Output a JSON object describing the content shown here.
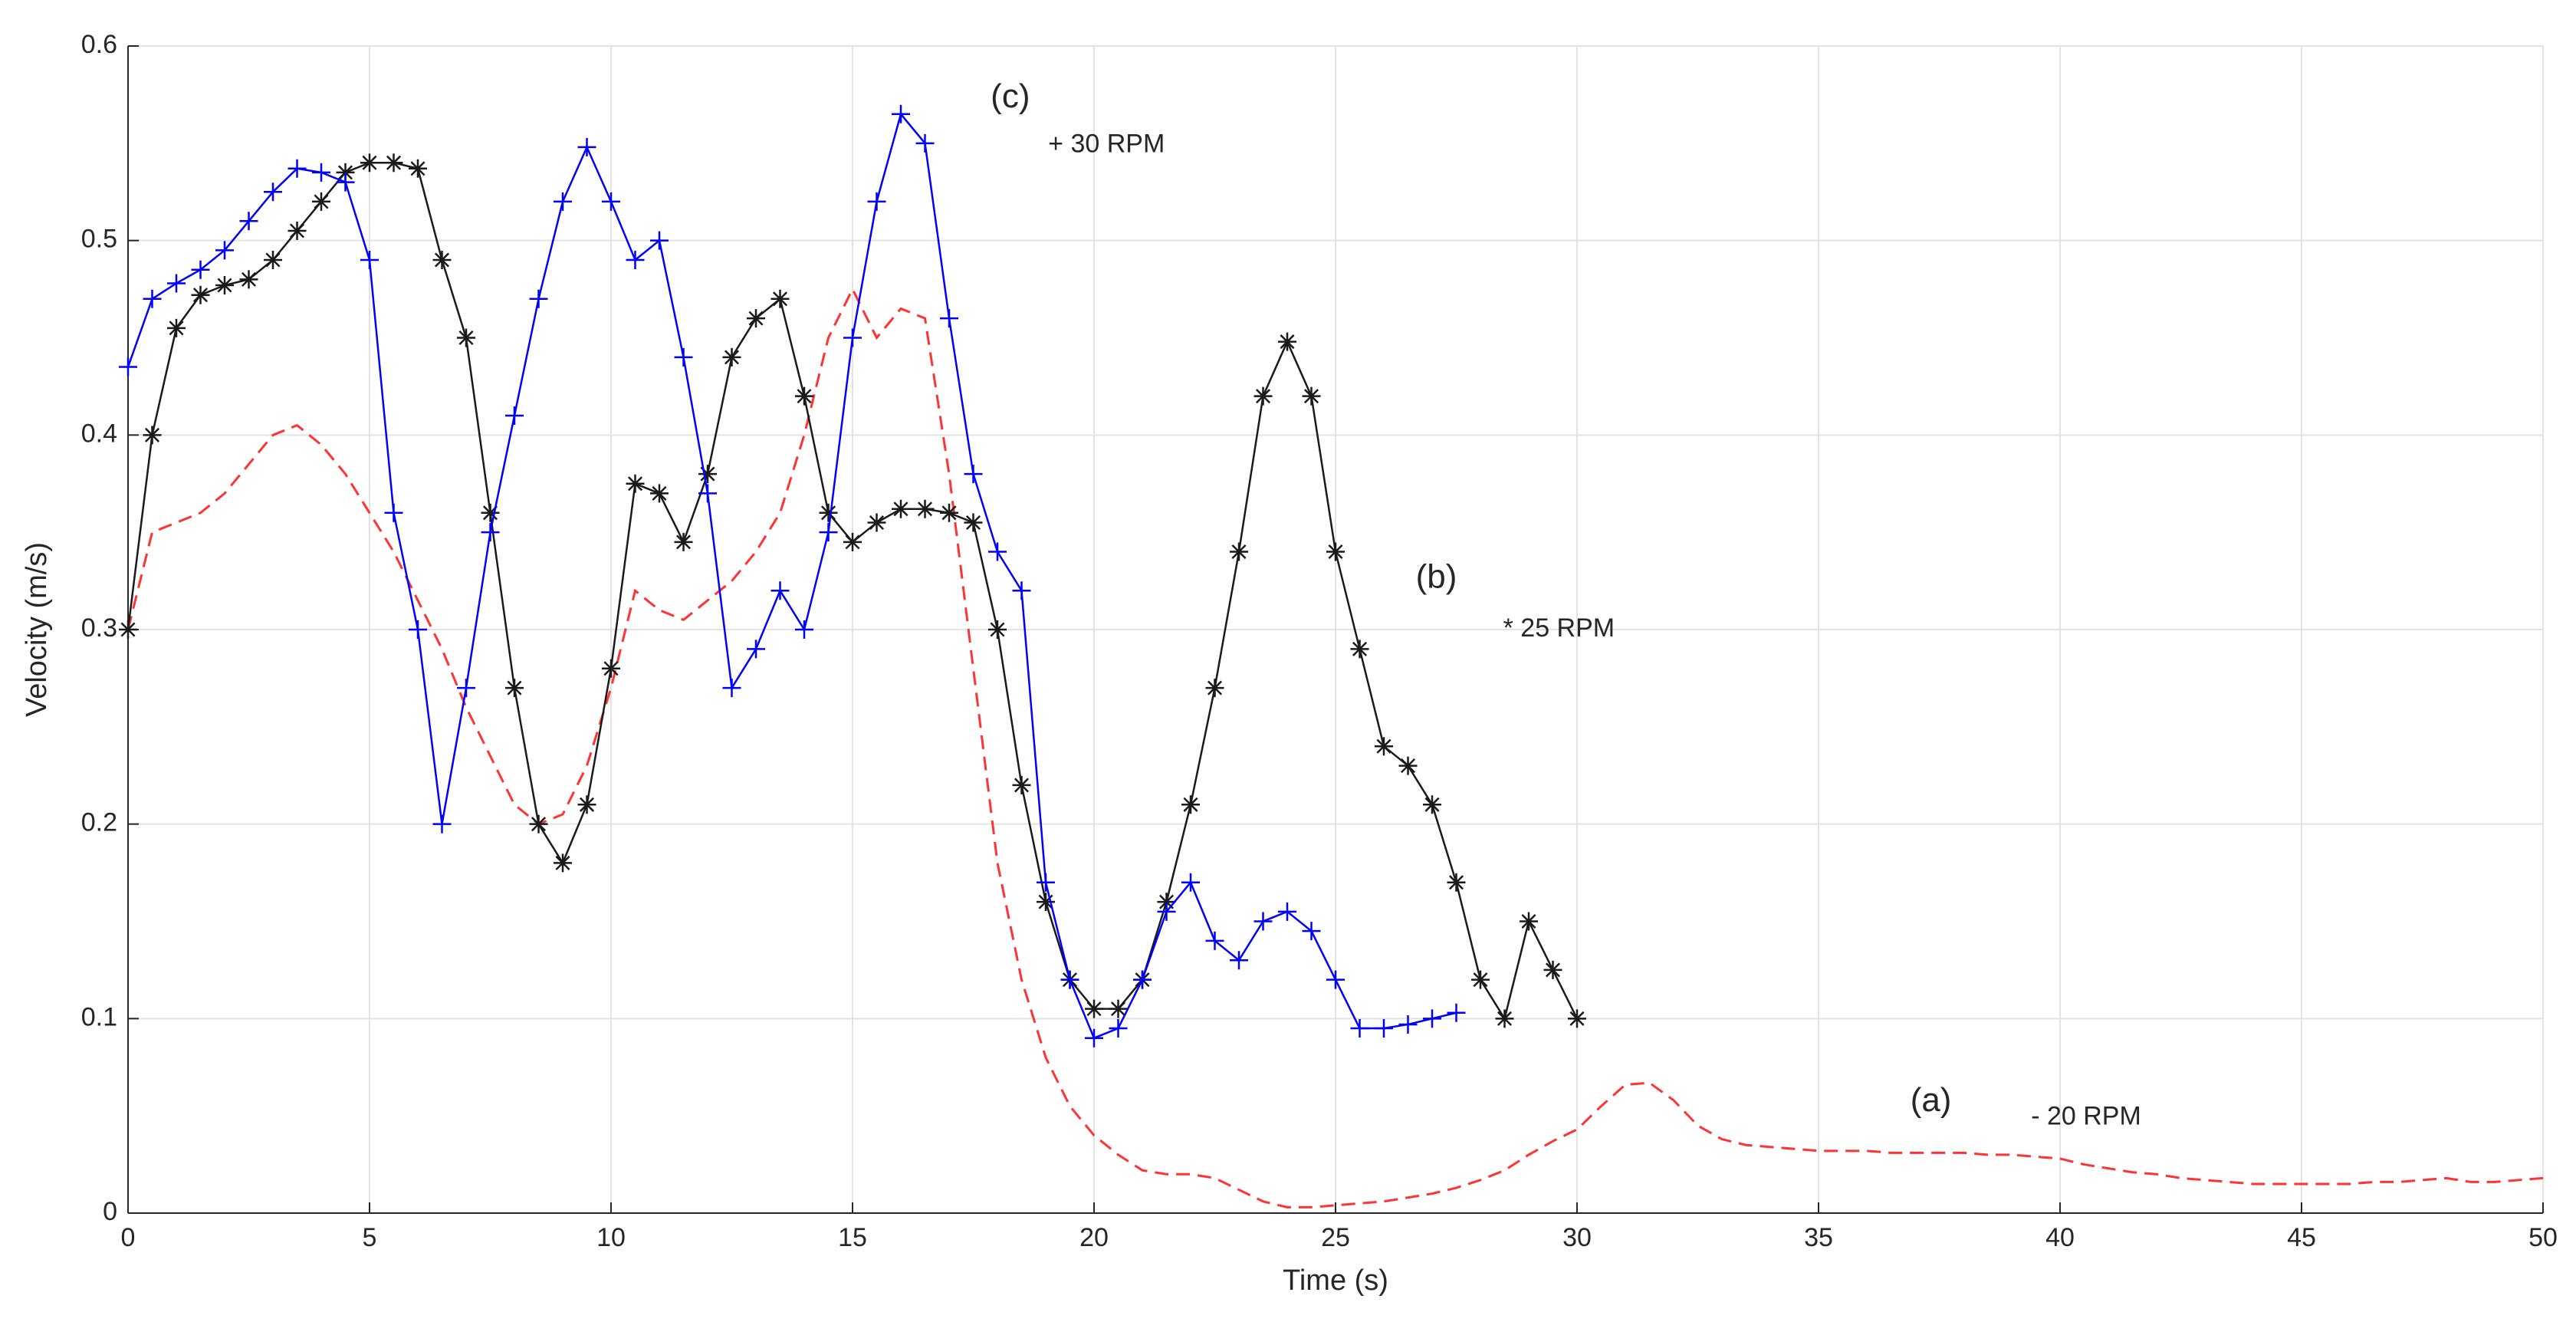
{
  "chart_data": {
    "type": "line",
    "xlabel": "Time (s)",
    "ylabel": "Velocity (m/s)",
    "annotations": [
      "(c)",
      "+ 30 RPM",
      "(b)",
      "* 25 RPM",
      "(a)",
      "- 20 RPM"
    ],
    "xlim": [
      0,
      50
    ],
    "ylim": [
      0,
      0.6
    ],
    "xticks": [
      0,
      5,
      10,
      15,
      20,
      25,
      30,
      35,
      40,
      45,
      50
    ],
    "yticks": [
      0,
      0.1,
      0.2,
      0.3,
      0.4,
      0.5,
      0.6
    ],
    "grid": true,
    "x": [
      0,
      0.5,
      1,
      1.5,
      2,
      2.5,
      3,
      3.5,
      4,
      4.5,
      5,
      5.5,
      6,
      6.5,
      7,
      7.5,
      8,
      8.5,
      9,
      9.5,
      10,
      10.5,
      11,
      11.5,
      12,
      12.5,
      13,
      13.5,
      14,
      14.5,
      15,
      15.5,
      16,
      16.5,
      17,
      17.5,
      18,
      18.5,
      19,
      19.5,
      20,
      20.5,
      21,
      21.5,
      22,
      22.5,
      23,
      23.5,
      24,
      24.5,
      25,
      25.5,
      26,
      26.5,
      27,
      27.5,
      28,
      28.5,
      29,
      29.5,
      30,
      30.5,
      31,
      31.5,
      32,
      32.5,
      33,
      33.5,
      34,
      34.5,
      35,
      35.5,
      36,
      36.5,
      37,
      37.5,
      38,
      38.5,
      39,
      39.5,
      40,
      40.5,
      41,
      41.5,
      42,
      42.5,
      43,
      43.5,
      44,
      44.5,
      45,
      45.5,
      46,
      46.5,
      47,
      47.5,
      48,
      48.5,
      49,
      49.5,
      50
    ],
    "series": [
      {
        "color": "#ff3333",
        "dash": true,
        "marker": null,
        "values": [
          0.3,
          0.35,
          0.355,
          0.36,
          0.37,
          0.385,
          0.4,
          0.405,
          0.395,
          0.38,
          0.36,
          0.34,
          0.315,
          0.29,
          0.26,
          0.235,
          0.21,
          0.2,
          0.205,
          0.23,
          0.27,
          0.32,
          0.31,
          0.305,
          0.315,
          0.325,
          0.34,
          0.36,
          0.4,
          0.45,
          0.475,
          0.45,
          0.465,
          0.46,
          0.38,
          0.28,
          0.18,
          0.12,
          0.08,
          0.055,
          0.04,
          0.03,
          0.022,
          0.02,
          0.02,
          0.018,
          0.012,
          0.006,
          0.003,
          0.003,
          0.004,
          0.005,
          0.006,
          0.008,
          0.01,
          0.013,
          0.017,
          0.022,
          0.03,
          0.037,
          0.043,
          0.055,
          0.066,
          0.067,
          0.058,
          0.045,
          0.038,
          0.035,
          0.034,
          0.033,
          0.032,
          0.032,
          0.032,
          0.031,
          0.031,
          0.031,
          0.031,
          0.03,
          0.03,
          0.029,
          0.028,
          0.025,
          0.023,
          0.021,
          0.02,
          0.018,
          0.017,
          0.016,
          0.015,
          0.015,
          0.015,
          0.015,
          0.015,
          0.016,
          0.016,
          0.017,
          0.018,
          0.016,
          0.016,
          0.017,
          0.018
        ]
      },
      {
        "color": "#1a1a1a",
        "dash": false,
        "marker": "asterisk",
        "values": [
          0.3,
          0.4,
          0.455,
          0.472,
          0.477,
          0.48,
          0.49,
          0.505,
          0.52,
          0.535,
          0.54,
          0.54,
          0.537,
          0.49,
          0.45,
          0.36,
          0.27,
          0.2,
          0.18,
          0.21,
          0.28,
          0.375,
          0.37,
          0.345,
          0.38,
          0.44,
          0.46,
          0.47,
          0.42,
          0.36,
          0.345,
          0.355,
          0.362,
          0.362,
          0.36,
          0.355,
          0.3,
          0.22,
          0.16,
          0.12,
          0.105,
          0.105,
          0.12,
          0.16,
          0.21,
          0.27,
          0.34,
          0.42,
          0.448,
          0.42,
          0.34,
          0.29,
          0.24,
          0.23,
          0.21,
          0.17,
          0.12,
          0.1,
          0.15,
          0.125,
          0.1,
          null,
          null,
          null,
          null,
          null,
          null,
          null,
          null,
          null,
          null,
          null,
          null,
          null,
          null,
          null,
          null,
          null,
          null,
          null,
          null,
          null,
          null,
          null,
          null,
          null,
          null,
          null,
          null,
          null,
          null,
          null,
          null,
          null,
          null,
          null,
          null,
          null,
          null,
          null,
          null
        ]
      },
      {
        "color": "#0000ff",
        "dash": false,
        "marker": "plus",
        "values": [
          0.435,
          0.47,
          0.478,
          0.485,
          0.495,
          0.51,
          0.525,
          0.537,
          0.535,
          0.53,
          0.49,
          0.36,
          0.3,
          0.2,
          0.27,
          0.35,
          0.41,
          0.47,
          0.52,
          0.548,
          0.52,
          0.49,
          0.5,
          0.44,
          0.37,
          0.27,
          0.29,
          0.32,
          0.3,
          0.35,
          0.45,
          0.52,
          0.565,
          0.55,
          0.46,
          0.38,
          0.34,
          0.32,
          0.17,
          0.12,
          0.09,
          0.095,
          0.12,
          0.155,
          0.17,
          0.14,
          0.13,
          0.15,
          0.155,
          0.145,
          0.12,
          0.095,
          0.095,
          0.097,
          0.1,
          0.103,
          null,
          null,
          null,
          null,
          null,
          null,
          null,
          null,
          null,
          null,
          null,
          null,
          null,
          null,
          null,
          null,
          null,
          null,
          null,
          null,
          null,
          null,
          null,
          null,
          null,
          null,
          null,
          null,
          null,
          null,
          null,
          null,
          null,
          null,
          null,
          null,
          null,
          null,
          null,
          null,
          null,
          null,
          null,
          null,
          null
        ]
      }
    ]
  }
}
